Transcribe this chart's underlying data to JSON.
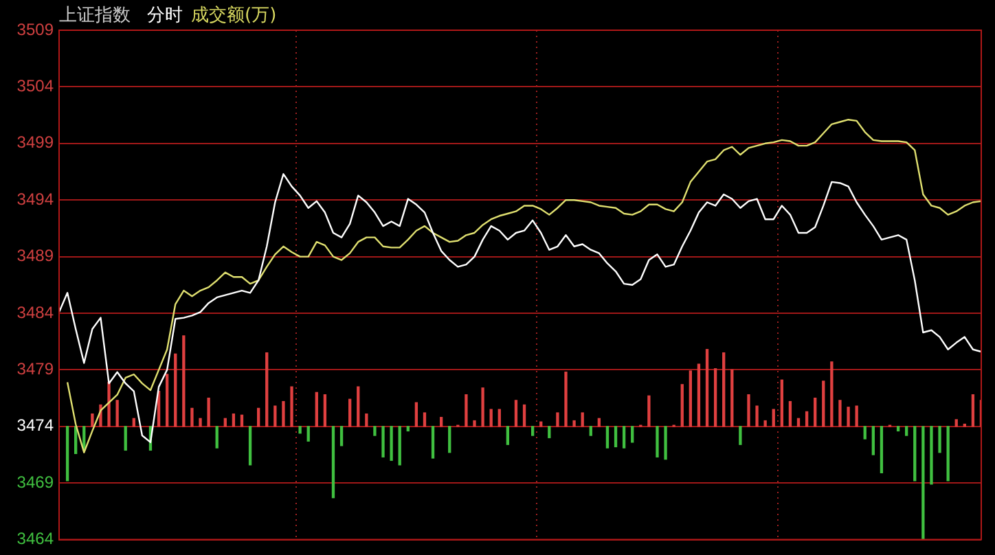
{
  "chart_data": {
    "type": "line",
    "title": "上证指数",
    "subtitle": "分时",
    "annotations": [
      "成交额(万)"
    ],
    "categories": [
      null,
      null,
      null,
      null,
      null,
      null,
      null,
      null,
      null,
      null,
      null,
      null,
      null,
      null,
      null,
      null,
      null,
      null,
      null,
      null,
      null,
      null,
      null,
      null,
      null,
      null,
      null,
      null,
      null,
      null,
      null,
      null,
      null,
      null,
      null,
      null,
      null,
      null,
      null,
      null,
      null,
      null,
      null,
      null,
      null,
      null,
      null,
      null,
      null,
      null,
      null,
      null,
      null,
      null,
      null,
      null,
      null,
      null,
      null,
      null,
      null,
      null,
      null,
      null,
      null,
      null,
      null,
      null,
      null,
      null,
      null,
      null,
      null,
      null,
      null,
      null,
      null,
      null,
      null,
      null,
      null,
      null,
      null,
      null,
      null,
      null,
      null,
      null,
      null,
      null,
      null,
      null,
      null,
      null,
      null,
      null,
      null,
      null,
      null,
      null,
      null,
      null,
      null,
      null,
      null,
      null,
      null,
      null,
      null,
      null,
      null,
      null
    ],
    "ylim": [
      3464,
      3509
    ],
    "yticks": [
      3464,
      3469,
      3474,
      3479,
      3484,
      3489,
      3494,
      3499,
      3504,
      3509
    ],
    "grid": true,
    "legend": false,
    "tick_labels": "y",
    "series": [
      {
        "type": "bar",
        "colors": [
          "#e04040",
          "#40c040",
          "#40c040",
          "#40c040",
          "#e04040",
          "#e04040",
          "#e04040",
          "#e04040",
          "#40c040",
          "#e04040",
          "#e04040",
          "#40c040",
          "#e04040",
          "#e04040",
          "#e04040",
          "#e04040",
          "#e04040",
          "#e04040",
          "#e04040",
          "#40c040",
          "#e04040",
          "#e04040",
          "#e04040",
          "#40c040",
          "#e04040",
          "#e04040",
          "#e04040",
          "#e04040",
          "#e04040",
          "#40c040",
          "#40c040",
          "#e04040",
          "#e04040",
          "#40c040",
          "#40c040",
          "#e04040",
          "#e04040",
          "#e04040",
          "#40c040",
          "#40c040",
          "#40c040",
          "#40c040",
          "#40c040",
          "#e04040",
          "#e04040",
          "#40c040",
          "#e04040",
          "#40c040",
          "#e04040",
          "#e04040",
          "#e04040",
          "#e04040",
          "#e04040",
          "#e04040",
          "#40c040",
          "#e04040",
          "#e04040",
          "#40c040",
          "#e04040",
          "#40c040",
          "#e04040",
          "#e04040",
          "#e04040",
          "#e04040",
          "#40c040",
          "#e04040",
          "#40c040",
          "#40c040",
          "#40c040",
          "#40c040",
          "#e04040",
          "#e04040",
          "#40c040",
          "#40c040",
          "#e04040",
          "#e04040",
          "#e04040",
          "#e04040",
          "#e04040",
          "#e04040",
          "#e04040",
          "#e04040",
          "#40c040",
          "#e04040",
          "#e04040",
          "#e04040",
          "#e04040",
          "#e04040",
          "#e04040",
          "#e04040",
          "#e04040",
          "#e04040",
          "#e04040",
          "#e04040",
          "#e04040",
          "#e04040",
          "#e04040",
          "#40c040",
          "#40c040",
          "#40c040",
          "#e04040",
          "#40c040",
          "#40c040",
          "#40c040",
          "#40c040",
          "#40c040",
          "#40c040",
          "#40c040",
          "#e04040",
          "#e04040",
          "#e04040",
          "#e04040"
        ],
        "base": [
          null,
          3474,
          3474,
          3474,
          3474,
          3474,
          3474,
          3474,
          3474,
          3474,
          null,
          3474,
          3474,
          3474,
          3474,
          3474,
          3474,
          3474,
          3474,
          3474,
          3474,
          3474,
          3474,
          3474,
          3474,
          3474,
          3474,
          3474,
          3474,
          3474,
          3474,
          3474,
          3474,
          3474,
          3474,
          3474,
          3474,
          3474,
          3474,
          3474,
          3474,
          3474,
          3474,
          3474,
          3474,
          3474,
          3474,
          3474,
          3474,
          3474,
          3474,
          3474,
          3474,
          3474,
          3474,
          3474,
          3474,
          3474,
          3474,
          3474,
          3474,
          3474,
          3474,
          3474,
          3474,
          3474,
          3474,
          3474,
          3474,
          3474,
          3474,
          3474,
          3474,
          3474,
          3474,
          3474,
          3474,
          3474,
          3474,
          3474,
          3474,
          3474,
          3474,
          3474,
          3474,
          3474,
          3474,
          3474,
          3474,
          3474,
          3474,
          3474,
          3474,
          3474,
          3474,
          3474,
          3474,
          3474,
          3474,
          3474,
          3474,
          3474,
          3474,
          3474,
          3474,
          3474,
          3474,
          3474,
          3474,
          3474,
          3474,
          3474
        ],
        "values": [
          null,
          -4.8,
          -2.4,
          -2.1,
          1.1,
          1.9,
          3.9,
          2.3,
          -2.1,
          0.7,
          null,
          -2.1,
          3.1,
          4.6,
          6.4,
          8.0,
          1.6,
          0.7,
          2.5,
          -1.9,
          0.7,
          1.1,
          1.0,
          -3.4,
          1.6,
          6.5,
          1.8,
          2.2,
          3.5,
          -0.6,
          -1.3,
          3.0,
          2.8,
          -6.3,
          -1.7,
          2.4,
          3.5,
          1.1,
          -0.8,
          -2.7,
          -3.0,
          -3.4,
          -0.4,
          2.1,
          1.2,
          -2.8,
          0.8,
          -2.3,
          0.1,
          2.8,
          0.5,
          3.4,
          1.5,
          1.5,
          -1.6,
          2.3,
          1.9,
          -0.8,
          0.4,
          -1.0,
          1.2,
          4.8,
          0.5,
          1.2,
          -0.8,
          0.7,
          -1.9,
          -1.8,
          -1.9,
          -1.4,
          0.1,
          2.7,
          -2.7,
          -2.9,
          0.1,
          3.7,
          4.9,
          5.5,
          6.8,
          5.1,
          6.5,
          5.0,
          -1.6,
          2.8,
          1.8,
          0.5,
          1.5,
          4.1,
          2.2,
          0.7,
          1.3,
          2.5,
          4.0,
          5.7,
          2.3,
          1.7,
          1.8,
          -1.1,
          -2.5,
          -4.1,
          0.1,
          -0.4,
          -0.8,
          -4.8,
          -10,
          -5.1,
          -2.3,
          -4.8,
          0.6,
          0.2,
          2.8,
          2.3
        ]
      },
      {
        "color": "#ffffff",
        "values": [
          3484.1,
          3485.8,
          3482.6,
          3479.6,
          3482.6,
          3483.6,
          3477.8,
          3478.8,
          3477.8,
          3477.1,
          3473.2,
          3472.6,
          3477.5,
          3479.0,
          3483.5,
          3483.6,
          3483.8,
          3484.1,
          3484.9,
          3485.4,
          3485.6,
          3485.8,
          3486.0,
          3485.8,
          3486.9,
          3489.9,
          3493.8,
          3496.3,
          3495.2,
          3494.4,
          3493.3,
          3493.9,
          3492.9,
          3491.1,
          3490.7,
          3491.9,
          3494.4,
          3493.8,
          3492.9,
          3491.7,
          3492.1,
          3491.7,
          3494.1,
          3493.6,
          3492.9,
          3491.1,
          3489.5,
          3488.7,
          3488.1,
          3488.3,
          3489.0,
          3490.5,
          3491.7,
          3491.3,
          3490.5,
          3491.1,
          3491.3,
          3492.2,
          3491.1,
          3489.6,
          3489.9,
          3490.9,
          3489.9,
          3490.1,
          3489.6,
          3489.3,
          3488.4,
          3487.7,
          3486.6,
          3486.5,
          3487.0,
          3488.7,
          3489.2,
          3488.1,
          3488.3,
          3489.9,
          3491.3,
          3492.9,
          3493.8,
          3493.5,
          3494.5,
          3494.1,
          3493.3,
          3493.9,
          3494.1,
          3492.3,
          3492.3,
          3493.5,
          3492.7,
          3491.1,
          3491.1,
          3491.6,
          3493.5,
          3495.6,
          3495.5,
          3495.2,
          3493.8,
          3492.7,
          3491.7,
          3490.5,
          3490.7,
          3490.9,
          3490.5,
          3486.9,
          3482.3,
          3482.5,
          3481.9,
          3480.8,
          3481.4,
          3481.9,
          3480.8,
          3480.6
        ]
      },
      {
        "color": "#e0e070",
        "values": [
          null,
          3477.9,
          3474.2,
          3471.7,
          3473.6,
          3475.4,
          3476.1,
          3476.8,
          3478.3,
          3478.6,
          3477.8,
          3477.2,
          3479.0,
          3480.8,
          3484.8,
          3486.0,
          3485.5,
          3486.0,
          3486.3,
          3486.9,
          3487.6,
          3487.2,
          3487.2,
          3486.6,
          3486.9,
          3488.1,
          3489.2,
          3489.9,
          3489.4,
          3489.0,
          3489.0,
          3490.3,
          3490.0,
          3489.0,
          3488.7,
          3489.3,
          3490.3,
          3490.7,
          3490.7,
          3489.9,
          3489.8,
          3489.8,
          3490.5,
          3491.3,
          3491.7,
          3491.1,
          3490.7,
          3490.3,
          3490.4,
          3490.9,
          3491.1,
          3491.8,
          3492.3,
          3492.6,
          3492.8,
          3493.0,
          3493.5,
          3493.5,
          3493.2,
          3492.7,
          3493.3,
          3494.0,
          3494.0,
          3493.9,
          3493.8,
          3493.5,
          3493.4,
          3493.3,
          3492.8,
          3492.7,
          3493.0,
          3493.6,
          3493.6,
          3493.2,
          3493.0,
          3493.8,
          3495.6,
          3496.5,
          3497.4,
          3497.6,
          3498.4,
          3498.7,
          3498.0,
          3498.6,
          3498.8,
          3499.0,
          3499.1,
          3499.3,
          3499.2,
          3498.8,
          3498.8,
          3499.1,
          3499.9,
          3500.7,
          3500.9,
          3501.1,
          3501.0,
          3500.0,
          3499.3,
          3499.2,
          3499.2,
          3499.2,
          3499.1,
          3498.4,
          3494.5,
          3493.5,
          3493.3,
          3492.7,
          3493.0,
          3493.5,
          3493.8,
          3493.9
        ]
      }
    ]
  }
}
